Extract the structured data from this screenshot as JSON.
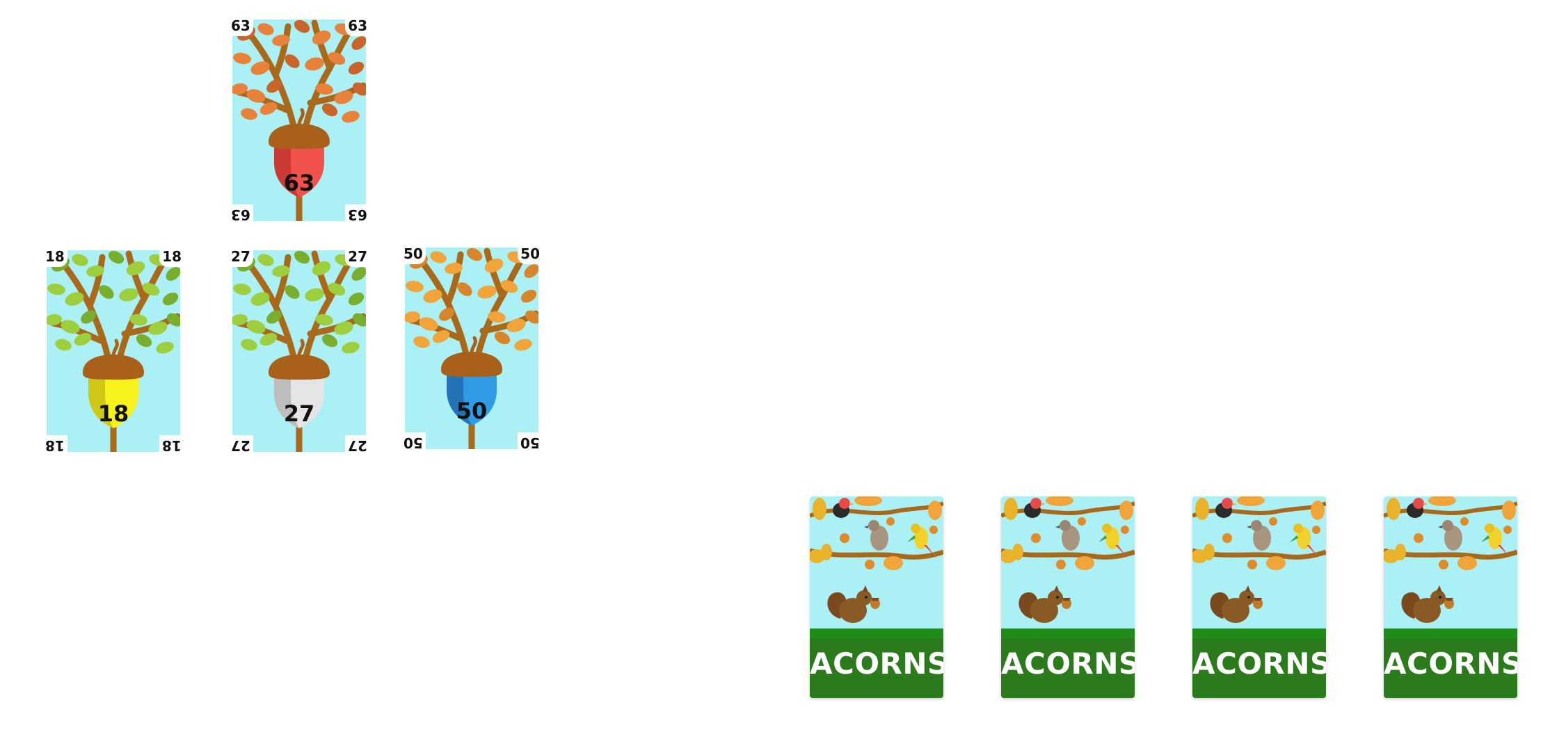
{
  "board": {
    "cards": [
      {
        "id": "card-63",
        "value": "63",
        "leaf_color": "#e8823a",
        "leaf_shadow": "#c9652a",
        "acorn_color": "#f0514a",
        "acorn_shade": "#c93a35"
      },
      {
        "id": "card-18",
        "value": "18",
        "leaf_color": "#9dce3d",
        "leaf_shadow": "#78ad2e",
        "acorn_color": "#f7f21c",
        "acorn_shade": "#cfc816"
      },
      {
        "id": "card-27",
        "value": "27",
        "leaf_color": "#9dce3d",
        "leaf_shadow": "#78ad2e",
        "acorn_color": "#e5e5e5",
        "acorn_shade": "#bdbdbd"
      },
      {
        "id": "card-50",
        "value": "50",
        "leaf_color": "#f0a43a",
        "leaf_shadow": "#d8852a",
        "acorn_color": "#2f9be6",
        "acorn_shade": "#2474b5"
      }
    ]
  },
  "hand": {
    "back_label": "ACORNS",
    "count": 4
  },
  "colors": {
    "sky": "#aaf0f5",
    "branch": "#a8691a",
    "acorn_cap": "#a8601a",
    "grass_dark": "#2b7a1c",
    "grass_band": "#1f8c1a"
  }
}
